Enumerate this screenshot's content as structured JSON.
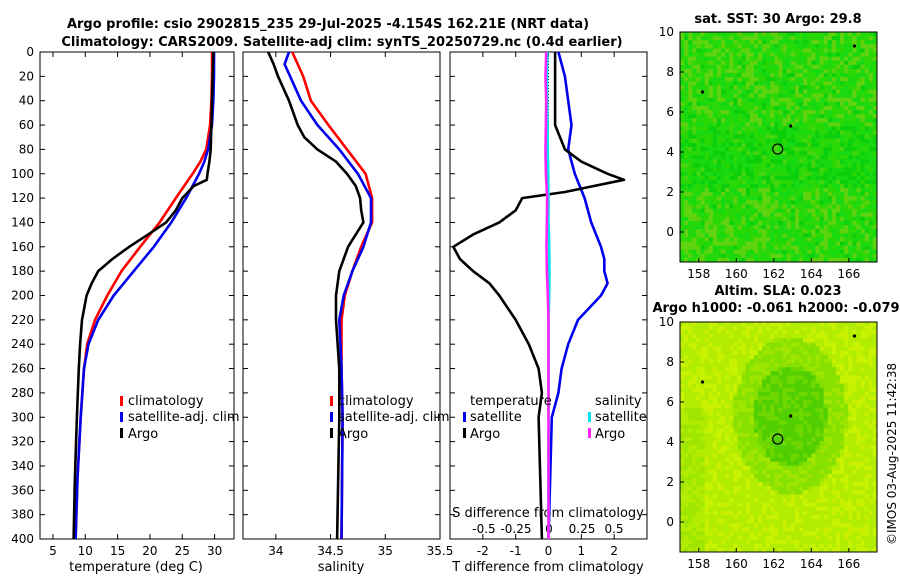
{
  "title": {
    "line1": "Argo profile: csio 2902815_235 29-Jul-2025 -4.154S 162.21E (NRT data)",
    "line2": "Climatology: CARS2009. Satellite-adj clim: synTS_20250729.nc (0.4d earlier)"
  },
  "copyright": "©IMOS 03-Aug-2025 11:42:38",
  "colors": {
    "climatology": "#ff0000",
    "satellite": "#0000ee",
    "argo": "#000000",
    "sal_satellite": "#00e5ee",
    "sal_argo": "#ff22ff"
  },
  "chart_data": [
    {
      "type": "line",
      "name": "temperature",
      "xlabel": "temperature (deg C)",
      "xlim": [
        3,
        33
      ],
      "ylim": [
        0,
        400
      ],
      "y_inverted": true,
      "xticks": [
        5,
        10,
        15,
        20,
        25,
        30
      ],
      "xtick_labels": [
        "5",
        "10",
        "15",
        "20",
        "25",
        "30"
      ],
      "yticks": [
        0,
        20,
        40,
        60,
        80,
        100,
        120,
        140,
        160,
        180,
        200,
        220,
        240,
        260,
        280,
        300,
        320,
        340,
        360,
        380,
        400
      ],
      "ytick_labels": [
        "0",
        "20",
        "40",
        "60",
        "80",
        "100",
        "120",
        "140",
        "160",
        "180",
        "200",
        "220",
        "240",
        "260",
        "280",
        "300",
        "320",
        "340",
        "360",
        "380",
        "400"
      ],
      "legend": [
        "climatology",
        "satellite-adj. clim",
        "Argo"
      ],
      "series": [
        {
          "name": "climatology",
          "color_key": "climatology",
          "depth": [
            0,
            20,
            40,
            60,
            80,
            90,
            100,
            110,
            120,
            140,
            160,
            180,
            200,
            220,
            240,
            260,
            300,
            350,
            400
          ],
          "values": [
            29.6,
            29.6,
            29.5,
            29.3,
            28.7,
            27.8,
            26.6,
            25.3,
            24.0,
            21.5,
            18.5,
            15.6,
            13.4,
            11.5,
            10.3,
            9.8,
            9.3,
            8.8,
            8.5
          ]
        },
        {
          "name": "satellite-adj. clim",
          "color_key": "satellite",
          "depth": [
            0,
            20,
            40,
            60,
            80,
            90,
            100,
            110,
            120,
            140,
            160,
            180,
            200,
            220,
            240,
            260,
            300,
            350,
            400
          ],
          "values": [
            29.9,
            29.9,
            29.8,
            29.6,
            29.0,
            28.4,
            27.6,
            26.6,
            25.6,
            23.3,
            20.6,
            17.5,
            14.4,
            12.0,
            10.5,
            9.8,
            9.3,
            8.8,
            8.5
          ]
        },
        {
          "name": "Argo",
          "color_key": "argo",
          "depth": [
            0,
            20,
            40,
            60,
            80,
            90,
            100,
            105,
            110,
            120,
            130,
            140,
            150,
            160,
            170,
            180,
            190,
            200,
            220,
            240,
            260,
            300,
            350,
            400
          ],
          "values": [
            29.8,
            29.7,
            29.6,
            29.5,
            29.4,
            29.2,
            28.9,
            28.8,
            26.8,
            25.0,
            24.0,
            22.5,
            19.7,
            16.8,
            14.2,
            12.0,
            11.0,
            10.2,
            9.5,
            9.2,
            9.0,
            8.7,
            8.4,
            8.2
          ]
        }
      ]
    },
    {
      "type": "line",
      "name": "salinity",
      "xlabel": "salinity",
      "xlim": [
        33.7,
        35.5
      ],
      "ylim": [
        0,
        400
      ],
      "y_inverted": true,
      "xticks": [
        34,
        34.5,
        35,
        35.5
      ],
      "xtick_labels": [
        "34",
        "34.5",
        "35",
        "35.5"
      ],
      "legend": [
        "climatology",
        "satellite-adj. clim",
        "Argo"
      ],
      "series": [
        {
          "name": "climatology",
          "color_key": "climatology",
          "depth": [
            0,
            20,
            40,
            60,
            80,
            100,
            120,
            140,
            160,
            180,
            200,
            220,
            260,
            300,
            400
          ],
          "values": [
            34.15,
            34.25,
            34.32,
            34.48,
            34.65,
            34.82,
            34.88,
            34.88,
            34.78,
            34.7,
            34.63,
            34.6,
            34.6,
            34.61,
            34.6
          ]
        },
        {
          "name": "satellite-adj. clim",
          "color_key": "satellite",
          "depth": [
            0,
            10,
            20,
            40,
            60,
            80,
            100,
            120,
            140,
            160,
            180,
            200,
            220,
            240,
            260,
            300,
            400
          ],
          "values": [
            34.12,
            34.08,
            34.13,
            34.23,
            34.38,
            34.58,
            34.75,
            34.87,
            34.87,
            34.8,
            34.7,
            34.62,
            34.58,
            34.59,
            34.6,
            34.61,
            34.6
          ]
        },
        {
          "name": "Argo",
          "color_key": "argo",
          "depth": [
            0,
            10,
            20,
            40,
            60,
            70,
            80,
            90,
            100,
            110,
            120,
            130,
            140,
            150,
            160,
            170,
            180,
            200,
            220,
            260,
            300,
            400
          ],
          "values": [
            33.93,
            33.98,
            34.02,
            34.12,
            34.2,
            34.26,
            34.38,
            34.55,
            34.65,
            34.73,
            34.77,
            34.78,
            34.8,
            34.73,
            34.66,
            34.62,
            34.58,
            34.55,
            34.55,
            34.58,
            34.58,
            34.56
          ]
        }
      ]
    },
    {
      "type": "line",
      "name": "difference from climatology",
      "xlabel": "T difference from climatology",
      "xlabel_top": "S difference from climatology",
      "xlim": [
        -3,
        3
      ],
      "ylim": [
        0,
        400
      ],
      "y_inverted": true,
      "xticks": [
        -2,
        -1,
        0,
        1,
        2
      ],
      "xtick_labels": [
        "-2",
        "-1",
        "0",
        "1",
        "2"
      ],
      "s_ticks_label_row": [
        "-0.5",
        "-0.25",
        "0",
        "0.25",
        "0.5"
      ],
      "legend_temperature": {
        "header": "temperature",
        "items": [
          "satellite",
          "Argo"
        ]
      },
      "legend_salinity": {
        "header": "salinity",
        "items": [
          "satellite",
          "Argo"
        ]
      },
      "series": [
        {
          "name": "temperature satellite",
          "color_key": "satellite",
          "depth": [
            0,
            20,
            40,
            60,
            80,
            100,
            120,
            140,
            160,
            170,
            180,
            190,
            200,
            220,
            240,
            260,
            280,
            300,
            400
          ],
          "values": [
            0.3,
            0.5,
            0.6,
            0.7,
            0.6,
            0.8,
            1.1,
            1.3,
            1.6,
            1.7,
            1.7,
            1.8,
            1.6,
            0.9,
            0.6,
            0.4,
            0.3,
            0.1,
            0.0
          ]
        },
        {
          "name": "temperature Argo",
          "color_key": "argo",
          "depth": [
            0,
            60,
            80,
            90,
            100,
            105,
            110,
            115,
            120,
            130,
            140,
            150,
            160,
            170,
            180,
            190,
            200,
            220,
            240,
            260,
            280,
            300,
            400
          ],
          "values": [
            0.2,
            0.2,
            0.5,
            1.0,
            1.8,
            2.3,
            1.4,
            0.5,
            -0.8,
            -1.0,
            -1.5,
            -2.3,
            -2.9,
            -2.7,
            -2.3,
            -1.8,
            -1.5,
            -1.0,
            -0.6,
            -0.3,
            -0.2,
            -0.3,
            -0.2
          ]
        },
        {
          "name": "salinity satellite",
          "color_key": "sal_satellite",
          "depth": [
            0,
            20,
            40,
            60,
            80,
            100,
            120,
            140,
            160,
            180,
            200,
            220,
            260,
            300,
            400
          ],
          "values": [
            -0.03,
            -0.05,
            -0.04,
            -0.03,
            -0.02,
            -0.01,
            0.0,
            0.0,
            0.02,
            0.03,
            0.02,
            0.0,
            0.0,
            0.0,
            0.0
          ]
        },
        {
          "name": "salinity Argo",
          "color_key": "sal_argo",
          "depth": [
            0,
            10,
            20,
            40,
            60,
            80,
            100,
            120,
            140,
            160,
            180,
            200,
            220,
            260,
            300,
            400
          ],
          "values": [
            -0.07,
            -0.08,
            -0.09,
            -0.07,
            -0.08,
            -0.09,
            -0.08,
            -0.04,
            -0.05,
            -0.06,
            -0.05,
            -0.02,
            0.0,
            0.0,
            0.0,
            0.0
          ]
        }
      ]
    },
    {
      "type": "heatmap",
      "name": "SST map",
      "title": "sat. SST: 30 Argo: 29.8",
      "xlim": [
        157,
        167.5
      ],
      "ylim": [
        -1.5,
        10
      ],
      "xticks": [
        158,
        160,
        162,
        164,
        166
      ],
      "xtick_labels": [
        "158",
        "160",
        "162",
        "164",
        "166"
      ],
      "yticks": [
        0,
        2,
        4,
        6,
        8,
        10
      ],
      "ytick_labels": [
        "0",
        "2",
        "4",
        "6",
        "8",
        "10"
      ],
      "profile_marker": [
        162.21,
        4.15
      ],
      "palette": [
        "#5fd30f",
        "#2ad806",
        "#19d910",
        "#0ccf0c",
        "#47d50e",
        "#3ed00a"
      ]
    },
    {
      "type": "heatmap",
      "name": "SLA map",
      "title": "Altim. SLA: 0.023",
      "subtitle": "Argo h1000: -0.061 h2000: -0.079",
      "xlim": [
        157,
        167.5
      ],
      "ylim": [
        -1.5,
        10
      ],
      "xticks": [
        158,
        160,
        162,
        164,
        166
      ],
      "xtick_labels": [
        "158",
        "160",
        "162",
        "164",
        "166"
      ],
      "yticks": [
        0,
        2,
        4,
        6,
        8,
        10
      ],
      "ytick_labels": [
        "0",
        "2",
        "4",
        "6",
        "8",
        "10"
      ],
      "profile_marker": [
        162.21,
        4.15
      ],
      "palette": [
        "#c8f200",
        "#b2ec00",
        "#9ee600",
        "#86e000",
        "#6ed800",
        "#52cf00"
      ]
    }
  ]
}
